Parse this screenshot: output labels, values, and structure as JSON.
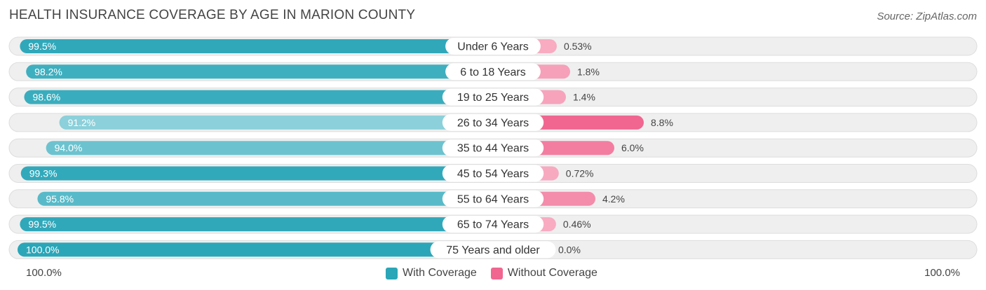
{
  "title": "HEALTH INSURANCE COVERAGE BY AGE IN MARION COUNTY",
  "source": "Source: ZipAtlas.com",
  "colors": {
    "with_dark": "#2aa6b8",
    "with_light": "#8bd0da",
    "without_dark": "#f06690",
    "without_light": "#f8afc4",
    "track": "#efefef",
    "track_border": "#dddddd"
  },
  "chart_data": {
    "type": "bar",
    "orientation": "horizontal-diverging",
    "categories": [
      "Under 6 Years",
      "6 to 18 Years",
      "19 to 25 Years",
      "26 to 34 Years",
      "35 to 44 Years",
      "45 to 54 Years",
      "55 to 64 Years",
      "65 to 74 Years",
      "75 Years and older"
    ],
    "series": [
      {
        "name": "With Coverage",
        "values": [
          99.5,
          98.2,
          98.6,
          91.2,
          94.0,
          99.3,
          95.8,
          99.5,
          100.0
        ],
        "labels": [
          "99.5%",
          "98.2%",
          "98.6%",
          "91.2%",
          "94.0%",
          "99.3%",
          "95.8%",
          "99.5%",
          "100.0%"
        ]
      },
      {
        "name": "Without Coverage",
        "values": [
          0.53,
          1.8,
          1.4,
          8.8,
          6.0,
          0.72,
          4.2,
          0.46,
          0.0
        ],
        "labels": [
          "0.53%",
          "1.8%",
          "1.4%",
          "8.8%",
          "6.0%",
          "0.72%",
          "4.2%",
          "0.46%",
          "0.0%"
        ]
      }
    ],
    "axis_left_label": "100.0%",
    "axis_right_label": "100.0%",
    "legend": [
      "With Coverage",
      "Without Coverage"
    ],
    "legend_position": "bottom-center"
  }
}
